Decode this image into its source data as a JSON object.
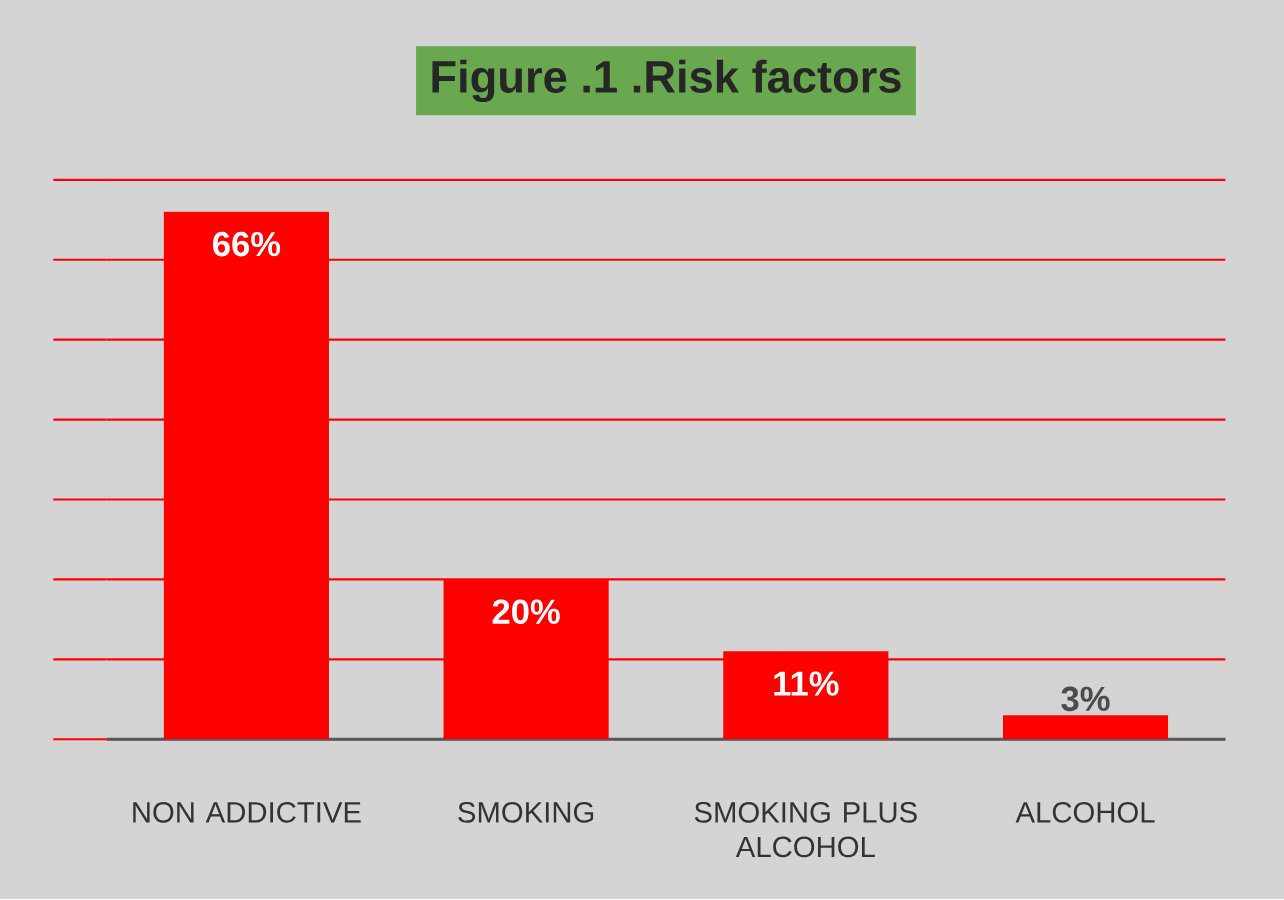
{
  "chart_data": {
    "type": "bar",
    "title": "Figure .1 .Risk factors",
    "categories": [
      "NON ADDICTIVE",
      "SMOKING",
      "SMOKING PLUS ALCOHOL",
      "ALCOHOL"
    ],
    "values": [
      66,
      20,
      11,
      3
    ],
    "value_labels": [
      "66%",
      "20%",
      "11%",
      "3%"
    ],
    "color": "#ff0000",
    "ylim": [
      0,
      70
    ],
    "yticks": [
      {
        "value": 0,
        "label": null
      },
      {
        "value": 10,
        "label": null
      },
      {
        "value": 20,
        "label": null
      },
      {
        "value": 30,
        "label": null
      },
      {
        "value": 40,
        "label": null
      },
      {
        "value": 50,
        "label": null
      },
      {
        "value": 60,
        "label": null
      },
      {
        "value": 70,
        "label": null
      }
    ],
    "tick_labels": "x",
    "grid": "y"
  }
}
